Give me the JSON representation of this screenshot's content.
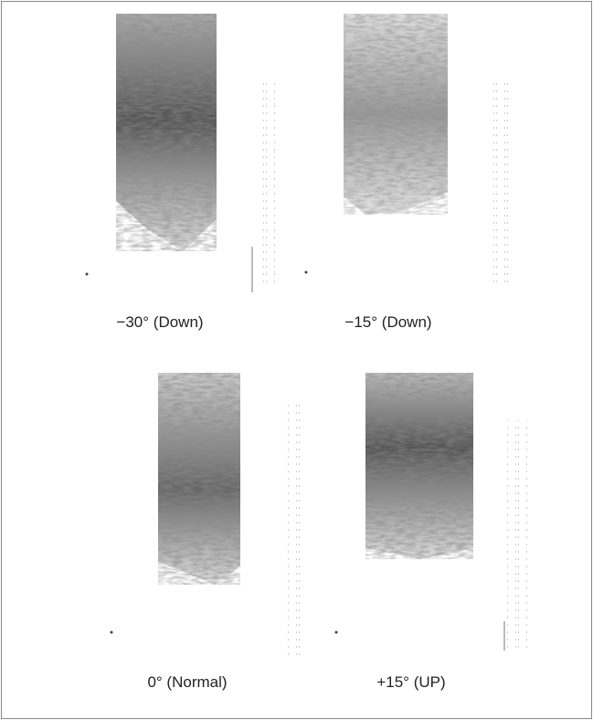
{
  "figure": {
    "panels": [
      {
        "caption": "−30° (Down)"
      },
      {
        "caption": "−15° (Down)"
      },
      {
        "caption": "0° (Normal)"
      },
      {
        "caption": "+15° (UP)"
      }
    ]
  }
}
